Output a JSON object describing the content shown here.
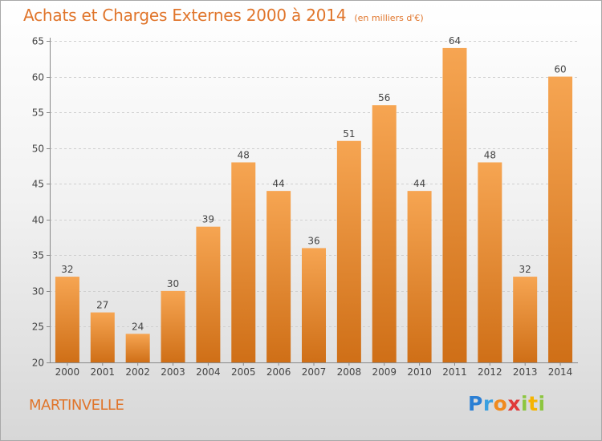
{
  "header": {
    "title": "Achats et Charges Externes 2000 à 2014",
    "subtitle": "(en milliers d'€)"
  },
  "footer": {
    "commune": "MARTINVELLE",
    "logo_text": "Proxiti"
  },
  "colors": {
    "accent": "#e0752b",
    "bar_light": "#f6a552",
    "bar_dark": "#cf6f17"
  },
  "chart_data": {
    "type": "bar",
    "title": "Achats et Charges Externes 2000 à 2014",
    "subtitle": "(en milliers d'€)",
    "categories": [
      "2000",
      "2001",
      "2002",
      "2003",
      "2004",
      "2005",
      "2006",
      "2007",
      "2008",
      "2009",
      "2010",
      "2011",
      "2012",
      "2013",
      "2014"
    ],
    "values": [
      32,
      27,
      24,
      30,
      39,
      48,
      44,
      36,
      51,
      56,
      44,
      64,
      48,
      32,
      60
    ],
    "ylim": [
      20,
      65
    ],
    "yticks": [
      20,
      25,
      30,
      35,
      40,
      45,
      50,
      55,
      60,
      65
    ],
    "grid": true,
    "data_labels": true
  }
}
